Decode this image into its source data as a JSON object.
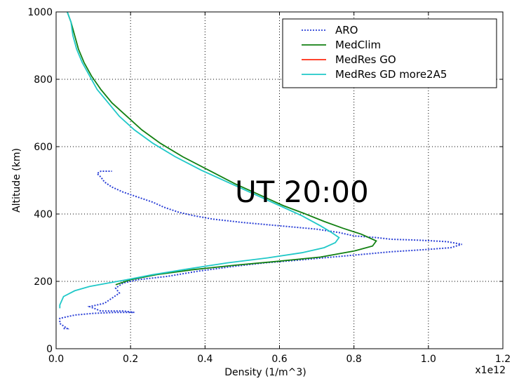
{
  "chart_data": {
    "type": "line",
    "xlabel": "Density (1/m^3)",
    "ylabel": "Altitude (km)",
    "x_multiplier_label": "x1e12",
    "xlim": [
      0.0,
      1.2
    ],
    "ylim": [
      0,
      1000
    ],
    "xticks": [
      "0.0",
      "0.2",
      "0.4",
      "0.6",
      "0.8",
      "1.0",
      "1.2"
    ],
    "yticks": [
      "0",
      "200",
      "400",
      "600",
      "800",
      "1000"
    ],
    "grid": true,
    "legend_position": "top-right",
    "annotation": "UT 20:00",
    "series": [
      {
        "name": "ARO",
        "color": "#2a3fd6",
        "style": "dotted",
        "points": [
          [
            0.02,
            60
          ],
          [
            0.03,
            60
          ],
          [
            0.01,
            75
          ],
          [
            0.01,
            90
          ],
          [
            0.05,
            100
          ],
          [
            0.1,
            105
          ],
          [
            0.16,
            108
          ],
          [
            0.21,
            108
          ],
          [
            0.18,
            112
          ],
          [
            0.12,
            112
          ],
          [
            0.09,
            125
          ],
          [
            0.11,
            130
          ],
          [
            0.13,
            135
          ],
          [
            0.15,
            150
          ],
          [
            0.17,
            165
          ],
          [
            0.16,
            180
          ],
          [
            0.18,
            195
          ],
          [
            0.22,
            205
          ],
          [
            0.3,
            215
          ],
          [
            0.38,
            230
          ],
          [
            0.48,
            245
          ],
          [
            0.56,
            255
          ],
          [
            0.64,
            262
          ],
          [
            0.72,
            270
          ],
          [
            0.8,
            278
          ],
          [
            0.9,
            288
          ],
          [
            1.0,
            295
          ],
          [
            1.06,
            300
          ],
          [
            1.09,
            310
          ],
          [
            1.05,
            318
          ],
          [
            0.98,
            322
          ],
          [
            0.9,
            325
          ],
          [
            0.86,
            330
          ],
          [
            0.8,
            335
          ],
          [
            0.76,
            345
          ],
          [
            0.7,
            355
          ],
          [
            0.6,
            365
          ],
          [
            0.5,
            375
          ],
          [
            0.42,
            385
          ],
          [
            0.37,
            395
          ],
          [
            0.33,
            405
          ],
          [
            0.29,
            420
          ],
          [
            0.26,
            435
          ],
          [
            0.22,
            450
          ],
          [
            0.18,
            465
          ],
          [
            0.15,
            480
          ],
          [
            0.13,
            495
          ],
          [
            0.12,
            510
          ],
          [
            0.11,
            520
          ],
          [
            0.12,
            527
          ],
          [
            0.15,
            527
          ]
        ]
      },
      {
        "name": "MedClim",
        "color": "#128012",
        "style": "solid",
        "points": [
          [
            0.03,
            1000
          ],
          [
            0.04,
            970
          ],
          [
            0.05,
            930
          ],
          [
            0.06,
            890
          ],
          [
            0.075,
            850
          ],
          [
            0.095,
            810
          ],
          [
            0.12,
            770
          ],
          [
            0.15,
            730
          ],
          [
            0.19,
            690
          ],
          [
            0.23,
            650
          ],
          [
            0.28,
            610
          ],
          [
            0.34,
            570
          ],
          [
            0.41,
            530
          ],
          [
            0.48,
            490
          ],
          [
            0.55,
            455
          ],
          [
            0.61,
            425
          ],
          [
            0.67,
            400
          ],
          [
            0.72,
            378
          ],
          [
            0.77,
            358
          ],
          [
            0.82,
            340
          ],
          [
            0.86,
            320
          ],
          [
            0.85,
            305
          ],
          [
            0.8,
            290
          ],
          [
            0.71,
            272
          ],
          [
            0.6,
            260
          ],
          [
            0.48,
            248
          ],
          [
            0.37,
            235
          ],
          [
            0.27,
            220
          ],
          [
            0.2,
            205
          ],
          [
            0.16,
            190
          ]
        ]
      },
      {
        "name": "MedRes GO",
        "color": "#ff2a10",
        "style": "solid",
        "points": []
      },
      {
        "name": "MedRes GD more2A5",
        "color": "#20c8c8",
        "style": "solid",
        "points": [
          [
            0.03,
            1000
          ],
          [
            0.04,
            970
          ],
          [
            0.045,
            930
          ],
          [
            0.055,
            890
          ],
          [
            0.07,
            850
          ],
          [
            0.09,
            810
          ],
          [
            0.11,
            770
          ],
          [
            0.14,
            730
          ],
          [
            0.17,
            690
          ],
          [
            0.21,
            650
          ],
          [
            0.26,
            610
          ],
          [
            0.32,
            570
          ],
          [
            0.39,
            530
          ],
          [
            0.46,
            495
          ],
          [
            0.53,
            460
          ],
          [
            0.6,
            425
          ],
          [
            0.66,
            395
          ],
          [
            0.71,
            365
          ],
          [
            0.74,
            345
          ],
          [
            0.76,
            330
          ],
          [
            0.75,
            315
          ],
          [
            0.72,
            300
          ],
          [
            0.66,
            285
          ],
          [
            0.57,
            270
          ],
          [
            0.46,
            255
          ],
          [
            0.36,
            238
          ],
          [
            0.26,
            220
          ],
          [
            0.19,
            205
          ],
          [
            0.14,
            195
          ],
          [
            0.09,
            185
          ],
          [
            0.05,
            172
          ],
          [
            0.02,
            155
          ],
          [
            0.01,
            130
          ],
          [
            0.01,
            120
          ]
        ]
      }
    ]
  }
}
